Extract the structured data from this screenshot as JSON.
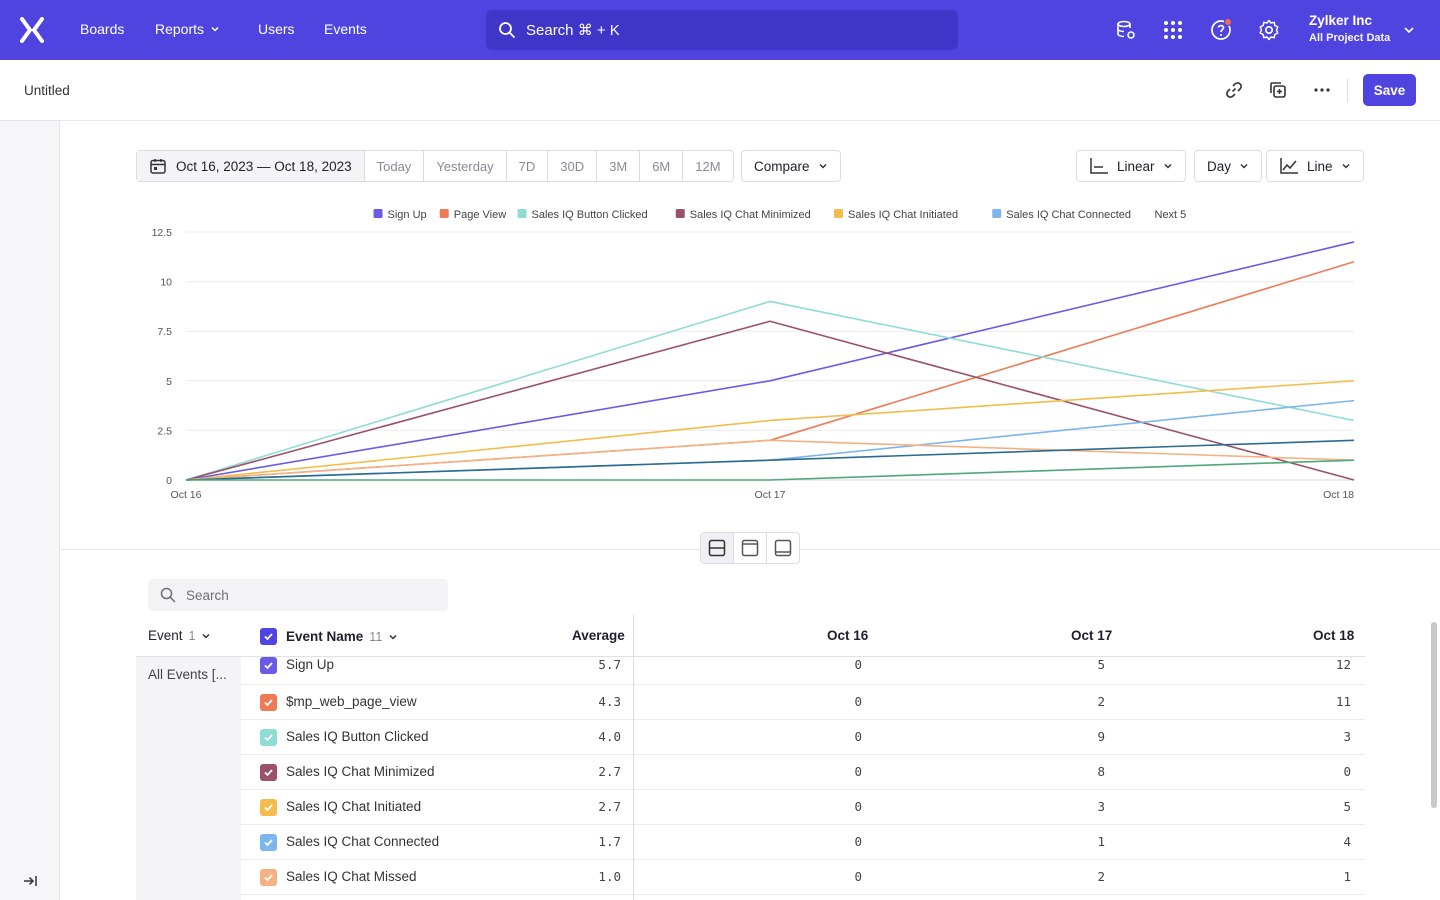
{
  "nav": {
    "items": [
      {
        "label": "Boards"
      },
      {
        "label": "Reports"
      },
      {
        "label": "Users"
      },
      {
        "label": "Events"
      }
    ],
    "search_label": "Search ⌘ + K",
    "org_name": "Zylker Inc",
    "org_sub": "All Project Data",
    "brand_color": "#4f44e0"
  },
  "header": {
    "title": "Untitled",
    "save_label": "Save"
  },
  "toolbar": {
    "date_range": "Oct 16, 2023 — Oct 18, 2023",
    "presets": [
      "Today",
      "Yesterday",
      "7D",
      "30D",
      "3M",
      "6M",
      "12M"
    ],
    "compare_label": "Compare",
    "scale_label": "Linear",
    "interval_label": "Day",
    "chart_type_label": "Line"
  },
  "chart_data": {
    "type": "line",
    "x": [
      "Oct 16",
      "Oct 17",
      "Oct 18"
    ],
    "ylim": [
      0,
      12.5
    ],
    "yticks": [
      "0",
      "2.5",
      "5",
      "7.5",
      "10",
      "12.5"
    ],
    "grid": true,
    "legend_position": "top",
    "legend_more": "Next 5",
    "series": [
      {
        "name": "Sign Up",
        "color": "#6a5be6",
        "values": [
          0,
          5,
          12
        ],
        "legend": true
      },
      {
        "name": "Page View",
        "color": "#ee7b55",
        "values": [
          0,
          2,
          11
        ],
        "legend": true
      },
      {
        "name": "Sales IQ Button Clicked",
        "color": "#8edcd6",
        "values": [
          0,
          9,
          3
        ],
        "legend": true
      },
      {
        "name": "Sales IQ Chat Minimized",
        "color": "#9b5169",
        "values": [
          0,
          8,
          0
        ],
        "legend": true
      },
      {
        "name": "Sales IQ Chat Initiated",
        "color": "#f2bd4c",
        "values": [
          0,
          3,
          5
        ],
        "legend": true
      },
      {
        "name": "Sales IQ Chat Connected",
        "color": "#7cb6ec",
        "values": [
          0,
          1,
          4
        ],
        "legend": true
      },
      {
        "name": "",
        "color": "#f4b184",
        "values": [
          0,
          2,
          1
        ],
        "legend": false
      },
      {
        "name": "",
        "color": "#2a6b8f",
        "values": [
          0,
          1,
          2
        ],
        "legend": false
      },
      {
        "name": "",
        "color": "#4fa77a",
        "values": [
          0,
          0,
          1
        ],
        "legend": false
      }
    ]
  },
  "table": {
    "search_placeholder": "Search",
    "col_event": "Event",
    "col_event_count": "1",
    "col_event_name": "Event Name",
    "col_event_name_count": "11",
    "col_average": "Average",
    "col_dates": [
      "Oct 16",
      "Oct 17",
      "Oct 18"
    ],
    "group_label": "All Events [...",
    "rows": [
      {
        "name": "Sign Up",
        "color": "#6a5be6",
        "avg": "5.7",
        "v": [
          "0",
          "5",
          "12"
        ]
      },
      {
        "name": "$mp_web_page_view",
        "color": "#ee7b55",
        "avg": "4.3",
        "v": [
          "0",
          "2",
          "11"
        ]
      },
      {
        "name": "Sales IQ Button Clicked",
        "color": "#8edcd6",
        "avg": "4.0",
        "v": [
          "0",
          "9",
          "3"
        ]
      },
      {
        "name": "Sales IQ Chat Minimized",
        "color": "#9b5169",
        "avg": "2.7",
        "v": [
          "0",
          "8",
          "0"
        ]
      },
      {
        "name": "Sales IQ Chat Initiated",
        "color": "#f2bd4c",
        "avg": "2.7",
        "v": [
          "0",
          "3",
          "5"
        ]
      },
      {
        "name": "Sales IQ Chat Connected",
        "color": "#7cb6ec",
        "avg": "1.7",
        "v": [
          "0",
          "1",
          "4"
        ]
      },
      {
        "name": "Sales IQ Chat Missed",
        "color": "#f4b184",
        "avg": "1.0",
        "v": [
          "0",
          "2",
          "1"
        ]
      }
    ]
  }
}
